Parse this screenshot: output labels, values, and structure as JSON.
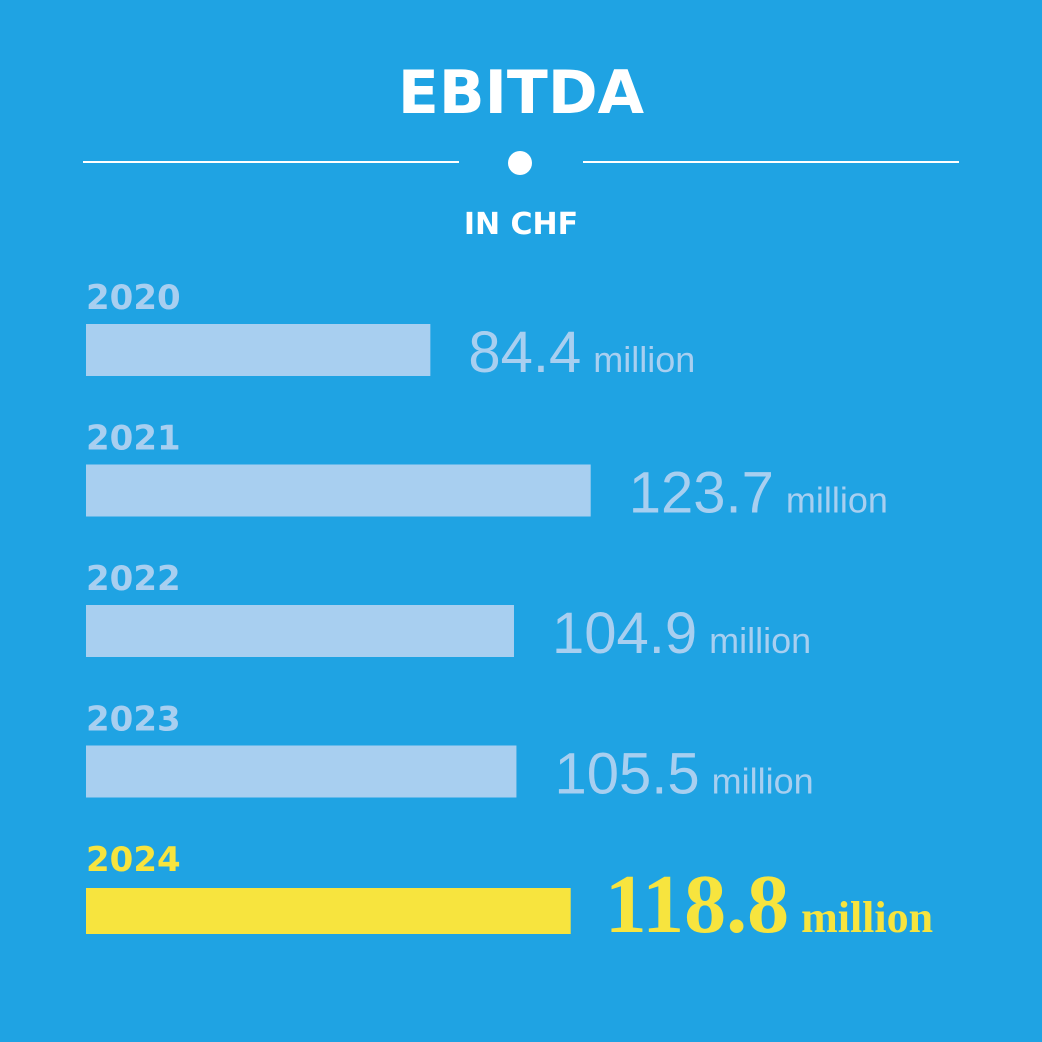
{
  "title": "EBITDA",
  "subtitle": "IN CHF",
  "colors": {
    "background": "#1fa3e3",
    "bar": "#a8cff0",
    "highlight": "#f7e43e",
    "title": "#ffffff"
  },
  "chart_data": {
    "type": "bar",
    "orientation": "horizontal",
    "title": "EBITDA",
    "subtitle": "IN CHF",
    "categories": [
      "2020",
      "2021",
      "2022",
      "2023",
      "2024"
    ],
    "values": [
      84.4,
      123.7,
      104.9,
      105.5,
      118.8
    ],
    "value_labels": [
      "84.4",
      "123.7",
      "104.9",
      "105.5",
      "118.8"
    ],
    "unit_label": "million",
    "highlighted_category": "2024",
    "xlabel": "",
    "ylabel": "",
    "grid": false,
    "legend": "none"
  }
}
